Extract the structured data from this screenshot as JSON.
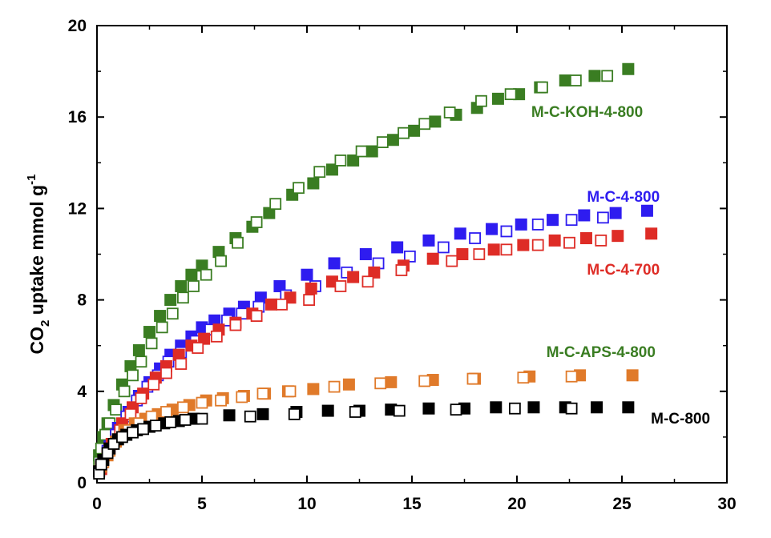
{
  "chart_data": {
    "type": "scatter",
    "title": "",
    "xlabel": "",
    "ylabel": "CO2 uptake mmol g-1",
    "ylabel_parts": {
      "pre": "CO",
      "sub": "2",
      "mid": " uptake mmol g",
      "sup": "-1"
    },
    "xlim": [
      0,
      30
    ],
    "ylim": [
      0,
      20
    ],
    "xticks": [
      "0",
      "5",
      "10",
      "15",
      "20",
      "25",
      "30"
    ],
    "yticks": [
      "0",
      "4",
      "8",
      "12",
      "16",
      "20"
    ],
    "grid": false,
    "series": [
      {
        "name": "M-C-KOH-4-800",
        "color": "#3a7d22",
        "filled": [
          [
            0.1,
            1.2
          ],
          [
            0.3,
            2.0
          ],
          [
            0.5,
            2.6
          ],
          [
            0.8,
            3.4
          ],
          [
            1.2,
            4.3
          ],
          [
            1.6,
            5.1
          ],
          [
            2.0,
            5.8
          ],
          [
            2.5,
            6.6
          ],
          [
            3.0,
            7.3
          ],
          [
            3.5,
            8.0
          ],
          [
            4.0,
            8.6
          ],
          [
            4.5,
            9.1
          ],
          [
            5.0,
            9.5
          ],
          [
            5.8,
            10.1
          ],
          [
            6.6,
            10.7
          ],
          [
            7.4,
            11.2
          ],
          [
            8.2,
            11.8
          ],
          [
            9.3,
            12.6
          ],
          [
            10.3,
            13.1
          ],
          [
            11.2,
            13.7
          ],
          [
            12.2,
            14.1
          ],
          [
            13.1,
            14.5
          ],
          [
            14.1,
            15.0
          ],
          [
            15.1,
            15.4
          ],
          [
            16.1,
            15.8
          ],
          [
            17.1,
            16.1
          ],
          [
            18.1,
            16.4
          ],
          [
            19.1,
            16.8
          ],
          [
            20.1,
            17.0
          ],
          [
            21.1,
            17.3
          ],
          [
            22.3,
            17.6
          ],
          [
            23.7,
            17.8
          ],
          [
            25.3,
            18.1
          ]
        ],
        "open": [
          [
            0.1,
            0.9
          ],
          [
            0.2,
            1.5
          ],
          [
            0.4,
            2.1
          ],
          [
            0.6,
            2.6
          ],
          [
            0.9,
            3.2
          ],
          [
            1.3,
            4.0
          ],
          [
            1.7,
            4.7
          ],
          [
            2.1,
            5.3
          ],
          [
            2.6,
            6.1
          ],
          [
            3.1,
            6.8
          ],
          [
            3.6,
            7.4
          ],
          [
            4.1,
            8.1
          ],
          [
            4.6,
            8.6
          ],
          [
            5.2,
            9.1
          ],
          [
            5.9,
            9.7
          ],
          [
            6.7,
            10.5
          ],
          [
            7.6,
            11.4
          ],
          [
            8.5,
            12.2
          ],
          [
            9.6,
            12.9
          ],
          [
            10.6,
            13.6
          ],
          [
            11.6,
            14.1
          ],
          [
            12.6,
            14.5
          ],
          [
            13.6,
            14.9
          ],
          [
            14.6,
            15.3
          ],
          [
            15.6,
            15.7
          ],
          [
            16.8,
            16.2
          ],
          [
            18.3,
            16.7
          ],
          [
            19.7,
            17.0
          ],
          [
            21.2,
            17.3
          ],
          [
            22.8,
            17.6
          ],
          [
            24.3,
            17.8
          ]
        ]
      },
      {
        "name": "M-C-4-800",
        "color": "#2e1cf0",
        "filled": [
          [
            0.2,
            0.7
          ],
          [
            0.6,
            1.6
          ],
          [
            1.0,
            2.4
          ],
          [
            1.5,
            3.1
          ],
          [
            2.0,
            3.8
          ],
          [
            2.5,
            4.4
          ],
          [
            3.0,
            5.0
          ],
          [
            3.5,
            5.6
          ],
          [
            4.0,
            6.0
          ],
          [
            4.5,
            6.4
          ],
          [
            5.0,
            6.8
          ],
          [
            5.6,
            7.1
          ],
          [
            6.3,
            7.4
          ],
          [
            7.0,
            7.7
          ],
          [
            7.8,
            8.1
          ],
          [
            8.7,
            8.6
          ],
          [
            10.0,
            9.1
          ],
          [
            11.3,
            9.6
          ],
          [
            12.8,
            10.0
          ],
          [
            14.3,
            10.3
          ],
          [
            15.8,
            10.6
          ],
          [
            17.3,
            10.9
          ],
          [
            18.8,
            11.1
          ],
          [
            20.2,
            11.3
          ],
          [
            21.7,
            11.5
          ],
          [
            23.2,
            11.7
          ],
          [
            24.7,
            11.8
          ],
          [
            26.2,
            11.9
          ]
        ],
        "open": [
          [
            0.2,
            0.8
          ],
          [
            0.5,
            1.4
          ],
          [
            0.9,
            2.1
          ],
          [
            1.4,
            2.9
          ],
          [
            1.9,
            3.6
          ],
          [
            2.4,
            4.2
          ],
          [
            2.9,
            4.7
          ],
          [
            3.4,
            5.3
          ],
          [
            4.0,
            5.7
          ],
          [
            4.7,
            6.2
          ],
          [
            5.4,
            6.7
          ],
          [
            6.2,
            7.1
          ],
          [
            6.9,
            7.4
          ],
          [
            7.7,
            7.7
          ],
          [
            9.0,
            8.2
          ],
          [
            10.4,
            8.6
          ],
          [
            11.9,
            9.2
          ],
          [
            13.4,
            9.6
          ],
          [
            14.9,
            9.9
          ],
          [
            16.5,
            10.3
          ],
          [
            18.0,
            10.7
          ],
          [
            19.5,
            11.0
          ],
          [
            21.0,
            11.3
          ],
          [
            22.6,
            11.5
          ],
          [
            24.1,
            11.6
          ]
        ]
      },
      {
        "name": "M-C-4-700",
        "color": "#de2c26",
        "filled": [
          [
            0.2,
            0.6
          ],
          [
            0.7,
            1.7
          ],
          [
            1.2,
            2.6
          ],
          [
            1.7,
            3.3
          ],
          [
            2.2,
            3.9
          ],
          [
            2.8,
            4.6
          ],
          [
            3.3,
            5.1
          ],
          [
            3.9,
            5.6
          ],
          [
            4.5,
            6.0
          ],
          [
            5.1,
            6.3
          ],
          [
            5.8,
            6.7
          ],
          [
            6.6,
            7.0
          ],
          [
            7.4,
            7.4
          ],
          [
            8.3,
            7.8
          ],
          [
            9.2,
            8.1
          ],
          [
            10.2,
            8.5
          ],
          [
            11.2,
            8.8
          ],
          [
            12.2,
            9.0
          ],
          [
            13.2,
            9.2
          ],
          [
            14.6,
            9.5
          ],
          [
            16.0,
            9.8
          ],
          [
            17.4,
            10.0
          ],
          [
            18.9,
            10.2
          ],
          [
            20.3,
            10.4
          ],
          [
            21.8,
            10.6
          ],
          [
            23.3,
            10.7
          ],
          [
            24.8,
            10.8
          ],
          [
            26.4,
            10.9
          ]
        ],
        "open": [
          [
            0.2,
            0.7
          ],
          [
            0.6,
            1.5
          ],
          [
            1.1,
            2.3
          ],
          [
            1.6,
            3.0
          ],
          [
            2.1,
            3.7
          ],
          [
            2.7,
            4.3
          ],
          [
            3.3,
            4.8
          ],
          [
            4.0,
            5.2
          ],
          [
            4.8,
            5.9
          ],
          [
            5.7,
            6.4
          ],
          [
            6.6,
            6.9
          ],
          [
            7.6,
            7.3
          ],
          [
            8.8,
            7.8
          ],
          [
            10.1,
            8.0
          ],
          [
            11.6,
            8.6
          ],
          [
            12.9,
            8.8
          ],
          [
            14.5,
            9.3
          ],
          [
            16.9,
            9.7
          ],
          [
            18.2,
            10.0
          ],
          [
            19.5,
            10.2
          ],
          [
            21.0,
            10.4
          ],
          [
            22.5,
            10.5
          ],
          [
            24.0,
            10.6
          ]
        ]
      },
      {
        "name": "M-C-APS-4-800",
        "color": "#e07a2a",
        "filled": [
          [
            0.2,
            0.7
          ],
          [
            0.5,
            1.2
          ],
          [
            0.9,
            1.8
          ],
          [
            1.3,
            2.3
          ],
          [
            1.8,
            2.6
          ],
          [
            2.3,
            2.8
          ],
          [
            2.9,
            3.0
          ],
          [
            3.6,
            3.2
          ],
          [
            4.4,
            3.4
          ],
          [
            5.2,
            3.6
          ],
          [
            6.0,
            3.7
          ],
          [
            7.0,
            3.8
          ],
          [
            8.0,
            3.9
          ],
          [
            9.1,
            4.0
          ],
          [
            10.3,
            4.1
          ],
          [
            12.0,
            4.3
          ],
          [
            14.0,
            4.4
          ],
          [
            16.0,
            4.5
          ],
          [
            18.0,
            4.55
          ],
          [
            20.6,
            4.65
          ],
          [
            23.0,
            4.7
          ],
          [
            25.5,
            4.7
          ]
        ],
        "open": [
          [
            0.1,
            0.5
          ],
          [
            0.3,
            0.9
          ],
          [
            0.6,
            1.4
          ],
          [
            1.0,
            1.9
          ],
          [
            1.5,
            2.3
          ],
          [
            2.0,
            2.6
          ],
          [
            2.6,
            2.9
          ],
          [
            3.3,
            3.1
          ],
          [
            4.1,
            3.3
          ],
          [
            5.0,
            3.5
          ],
          [
            5.9,
            3.6
          ],
          [
            6.9,
            3.75
          ],
          [
            7.9,
            3.9
          ],
          [
            9.2,
            4.0
          ],
          [
            11.3,
            4.2
          ],
          [
            13.5,
            4.35
          ],
          [
            15.6,
            4.45
          ],
          [
            17.9,
            4.55
          ],
          [
            20.3,
            4.6
          ],
          [
            22.6,
            4.65
          ]
        ]
      },
      {
        "name": "M-C-800",
        "color": "#000000",
        "filled": [
          [
            0.1,
            0.5
          ],
          [
            0.3,
            1.0
          ],
          [
            0.6,
            1.5
          ],
          [
            1.0,
            1.9
          ],
          [
            1.4,
            2.1
          ],
          [
            1.9,
            2.3
          ],
          [
            2.5,
            2.45
          ],
          [
            3.2,
            2.6
          ],
          [
            3.9,
            2.7
          ],
          [
            4.6,
            2.8
          ],
          [
            6.3,
            2.95
          ],
          [
            7.9,
            3.0
          ],
          [
            9.5,
            3.1
          ],
          [
            11.0,
            3.15
          ],
          [
            12.5,
            3.15
          ],
          [
            14.0,
            3.2
          ],
          [
            15.8,
            3.25
          ],
          [
            17.5,
            3.25
          ],
          [
            19.0,
            3.3
          ],
          [
            20.8,
            3.3
          ],
          [
            22.3,
            3.3
          ],
          [
            23.8,
            3.3
          ],
          [
            25.3,
            3.3
          ]
        ],
        "open": [
          [
            0.1,
            0.4
          ],
          [
            0.2,
            0.8
          ],
          [
            0.5,
            1.3
          ],
          [
            0.8,
            1.7
          ],
          [
            1.2,
            2.0
          ],
          [
            1.7,
            2.2
          ],
          [
            2.2,
            2.35
          ],
          [
            2.8,
            2.5
          ],
          [
            3.5,
            2.65
          ],
          [
            4.2,
            2.75
          ],
          [
            5.0,
            2.8
          ],
          [
            7.3,
            2.9
          ],
          [
            9.4,
            3.0
          ],
          [
            12.3,
            3.1
          ],
          [
            14.4,
            3.15
          ],
          [
            17.1,
            3.2
          ],
          [
            19.9,
            3.25
          ],
          [
            22.6,
            3.25
          ]
        ]
      }
    ],
    "annotations": [
      {
        "text": "M-C-KOH-4-800",
        "color": "#3a7d22",
        "x": 26.0,
        "y": 16.0
      },
      {
        "text": "M-C-4-800",
        "color": "#2e1cf0",
        "x": 26.8,
        "y": 12.3
      },
      {
        "text": "M-C-4-700",
        "color": "#de2c26",
        "x": 26.8,
        "y": 9.1
      },
      {
        "text": "M-C-APS-4-800",
        "color": "#3a7d22",
        "x": 26.6,
        "y": 5.5
      },
      {
        "text": "M-C-800",
        "color": "#000000",
        "x": 29.2,
        "y": 2.6
      }
    ]
  }
}
